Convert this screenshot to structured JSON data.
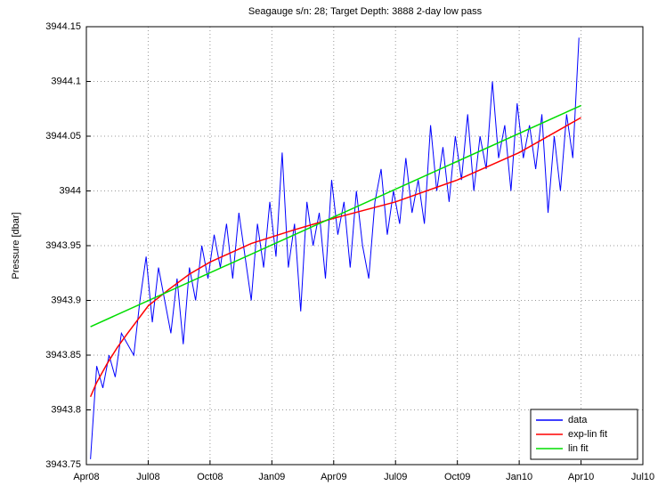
{
  "chart_data": {
    "type": "line",
    "title": "Seagauge s/n: 28; Target Depth: 3888 2-day low pass",
    "y_label": "Pressure [dbar]",
    "xlim": [
      0,
      27
    ],
    "ylim": [
      3943.75,
      3944.15
    ],
    "xticks": [
      {
        "value": 0,
        "label": "Apr08"
      },
      {
        "value": 3,
        "label": "Jul08"
      },
      {
        "value": 6,
        "label": "Oct08"
      },
      {
        "value": 9,
        "label": "Jan09"
      },
      {
        "value": 12,
        "label": "Apr09"
      },
      {
        "value": 15,
        "label": "Jul09"
      },
      {
        "value": 18,
        "label": "Oct09"
      },
      {
        "value": 21,
        "label": "Jan10"
      },
      {
        "value": 24,
        "label": "Apr10"
      },
      {
        "value": 27,
        "label": "Jul10"
      }
    ],
    "yticks": [
      3943.75,
      3943.8,
      3943.85,
      3943.9,
      3943.95,
      3944,
      3944.05,
      3944.1,
      3944.15
    ],
    "grid": true,
    "legend": "lower right",
    "series": [
      {
        "name": "data",
        "color": "#0000ff",
        "x": [
          0.2,
          0.5,
          0.8,
          1.1,
          1.4,
          1.7,
          2.0,
          2.3,
          2.6,
          2.9,
          3.2,
          3.5,
          3.8,
          4.1,
          4.4,
          4.7,
          5.0,
          5.3,
          5.6,
          5.9,
          6.2,
          6.5,
          6.8,
          7.1,
          7.4,
          7.7,
          8.0,
          8.3,
          8.6,
          8.9,
          9.2,
          9.5,
          9.8,
          10.1,
          10.4,
          10.7,
          11.0,
          11.3,
          11.6,
          11.9,
          12.2,
          12.5,
          12.8,
          13.1,
          13.4,
          13.7,
          14.0,
          14.3,
          14.6,
          14.9,
          15.2,
          15.5,
          15.8,
          16.1,
          16.4,
          16.7,
          17.0,
          17.3,
          17.6,
          17.9,
          18.2,
          18.5,
          18.8,
          19.1,
          19.4,
          19.7,
          20.0,
          20.3,
          20.6,
          20.9,
          21.2,
          21.5,
          21.8,
          22.1,
          22.4,
          22.7,
          23.0,
          23.3,
          23.6,
          23.9
        ],
        "values": [
          3943.755,
          3943.84,
          3943.82,
          3943.85,
          3943.83,
          3943.87,
          3943.86,
          3943.85,
          3943.9,
          3943.94,
          3943.88,
          3943.93,
          3943.9,
          3943.87,
          3943.92,
          3943.86,
          3943.93,
          3943.9,
          3943.95,
          3943.92,
          3943.96,
          3943.93,
          3943.97,
          3943.92,
          3943.98,
          3943.94,
          3943.9,
          3943.97,
          3943.93,
          3943.99,
          3943.94,
          3944.035,
          3943.93,
          3943.97,
          3943.89,
          3943.99,
          3943.95,
          3943.98,
          3943.92,
          3944.01,
          3943.96,
          3943.99,
          3943.93,
          3944,
          3943.95,
          3943.92,
          3943.99,
          3944.02,
          3943.96,
          3944,
          3943.97,
          3944.03,
          3943.98,
          3944.01,
          3943.97,
          3944.06,
          3944,
          3944.04,
          3943.99,
          3944.05,
          3944.01,
          3944.07,
          3944,
          3944.05,
          3944.02,
          3944.1,
          3944.03,
          3944.06,
          3944,
          3944.08,
          3944.03,
          3944.06,
          3944.02,
          3944.07,
          3943.98,
          3944.05,
          3944,
          3944.07,
          3944.03,
          3944.14
        ]
      },
      {
        "name": "exp-lin fit",
        "color": "#ff0000",
        "x": [
          0.2,
          0.5,
          1,
          1.5,
          2,
          3,
          4,
          5,
          6,
          8,
          10,
          12,
          15,
          18,
          21,
          24
        ],
        "values": [
          3943.812,
          3943.825,
          3943.842,
          3943.857,
          3943.87,
          3943.895,
          3943.91,
          3943.924,
          3943.935,
          3943.952,
          3943.964,
          3943.975,
          3943.99,
          3944.01,
          3944.035,
          3944.067
        ]
      },
      {
        "name": "lin fit",
        "color": "#00dd00",
        "x": [
          0.2,
          24
        ],
        "values": [
          3943.876,
          3944.078
        ]
      }
    ]
  }
}
